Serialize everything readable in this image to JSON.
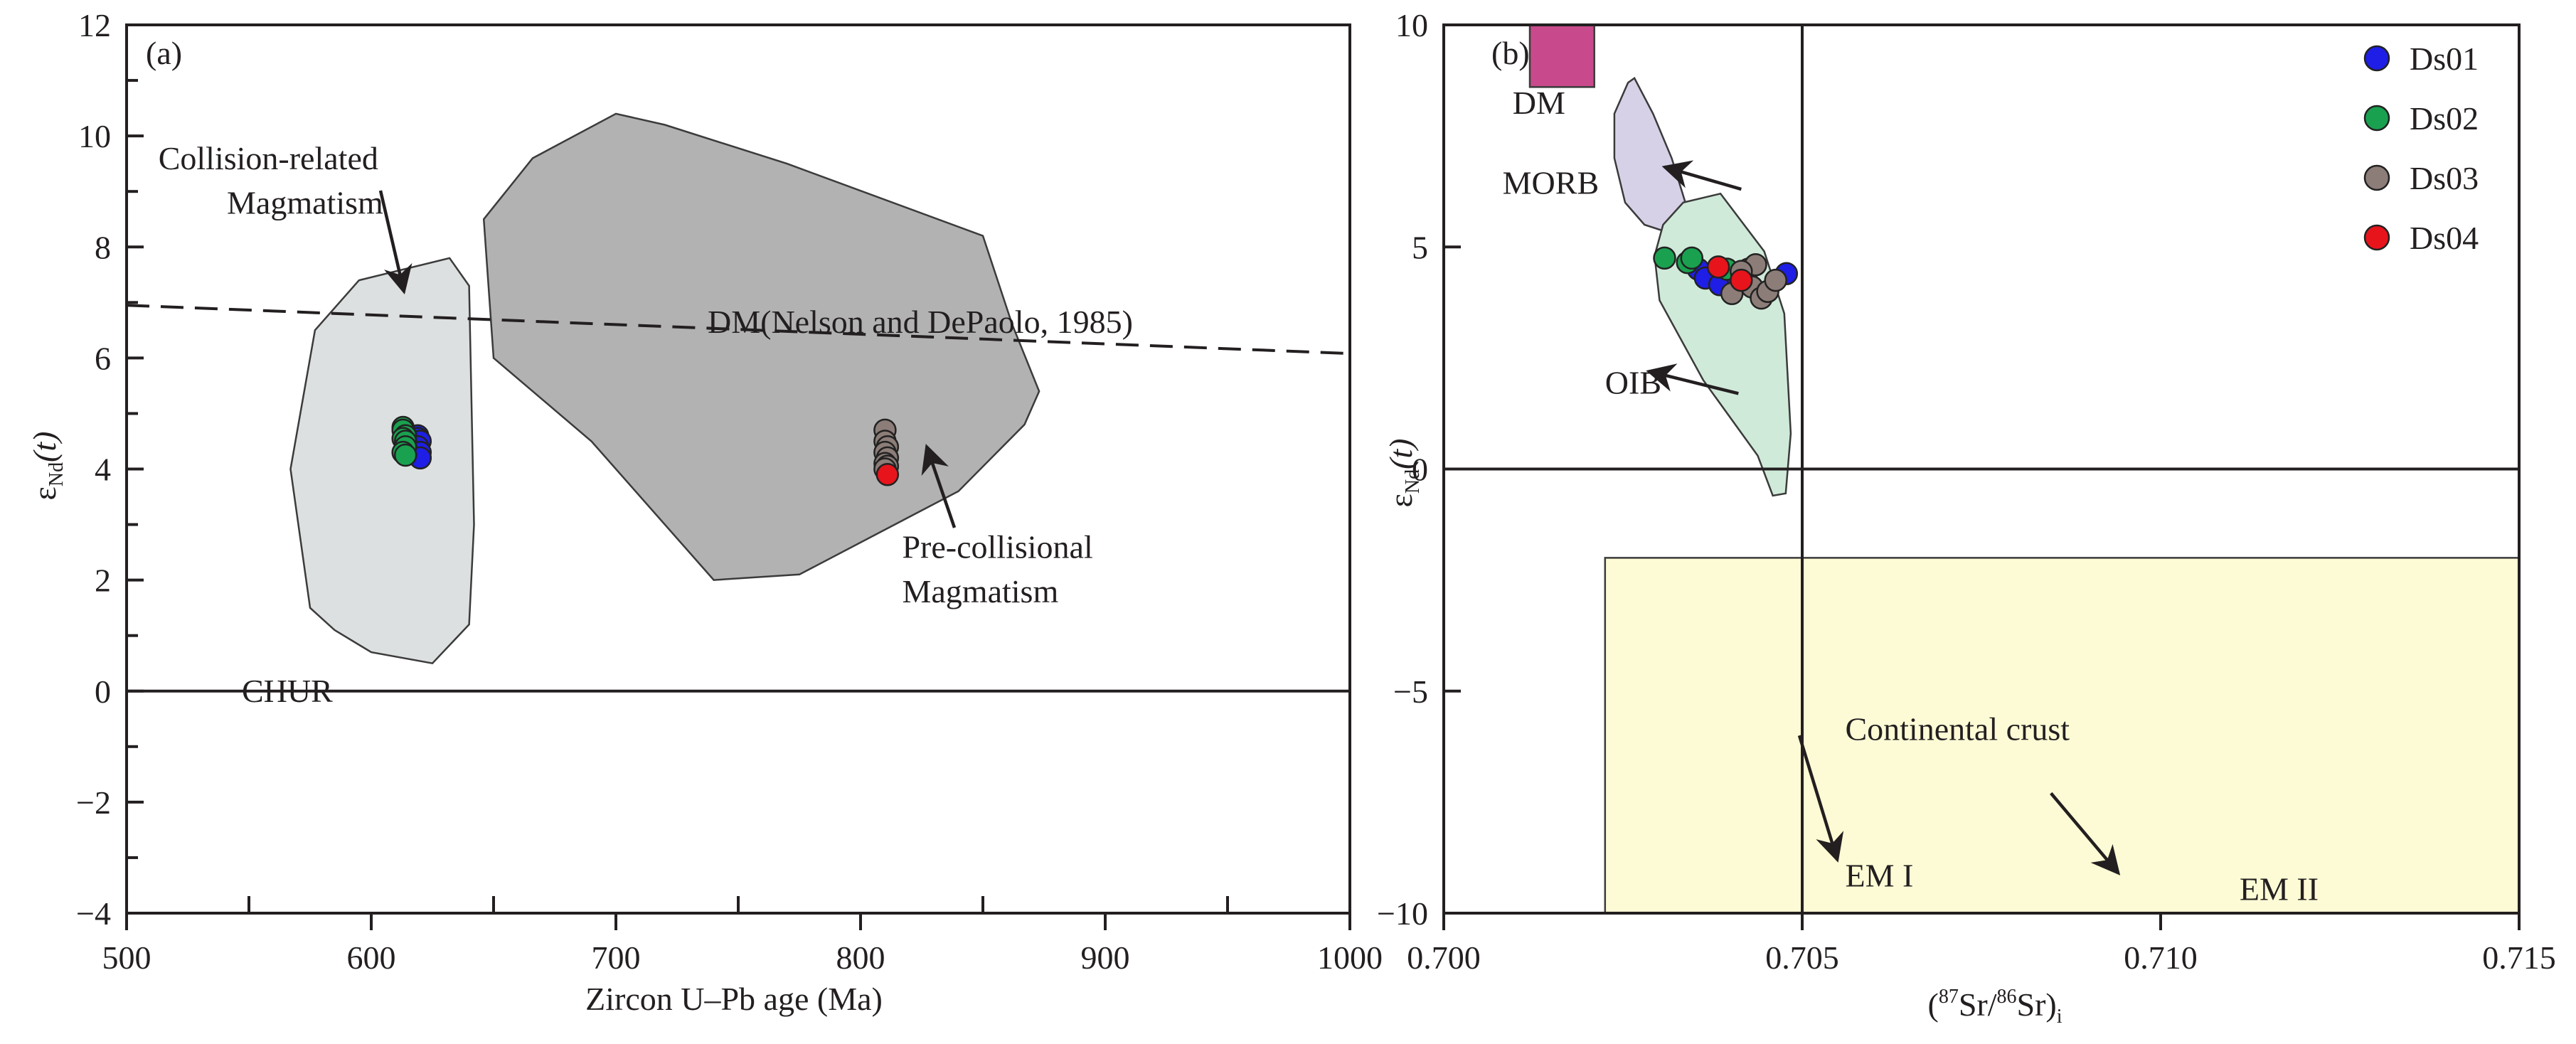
{
  "chart_data": [
    {
      "type": "scatter",
      "panel_label": "(a)",
      "xlabel": "Zircon U–Pb age (Ma)",
      "ylabel_main": "ε",
      "ylabel_sub": "Nd",
      "ylabel_tail": "(t)",
      "xlim": [
        500,
        1000
      ],
      "ylim": [
        -4,
        12
      ],
      "xticks": [
        "500",
        "600",
        "700",
        "800",
        "900",
        "1000"
      ],
      "yticks": [
        "−4",
        "−2",
        "0",
        "2",
        "4",
        "6",
        "8",
        "10",
        "12"
      ],
      "fields": [
        {
          "name": "collision-field",
          "color": "#dde0e0",
          "points": [
            [
              575,
              1.5
            ],
            [
              567,
              4
            ],
            [
              577,
              6.5
            ],
            [
              595,
              7.4
            ],
            [
              632,
              7.8
            ],
            [
              640,
              7.3
            ],
            [
              642,
              3
            ],
            [
              640,
              1.2
            ],
            [
              625,
              0.5
            ],
            [
              600,
              0.7
            ],
            [
              585,
              1.1
            ]
          ]
        },
        {
          "name": "pre-collision-field",
          "color": "#b2b2b2",
          "points": [
            [
              646,
              8.5
            ],
            [
              666,
              9.6
            ],
            [
              700,
              10.4
            ],
            [
              720,
              10.2
            ],
            [
              770,
              9.5
            ],
            [
              850,
              8.2
            ],
            [
              862,
              6.6
            ],
            [
              873,
              5.4
            ],
            [
              867,
              4.8
            ],
            [
              840,
              3.6
            ],
            [
              775,
              2.1
            ],
            [
              740,
              2.0
            ],
            [
              690,
              4.5
            ],
            [
              650,
              6.0
            ]
          ]
        }
      ],
      "reference_lines": [
        {
          "label": "DM(Nelson and DePaolo, 1985)",
          "style": "dashed",
          "points": [
            [
              500,
              6.95
            ],
            [
              1000,
              6.08
            ]
          ]
        },
        {
          "label": "CHUR",
          "style": "solid",
          "points": [
            [
              500,
              0
            ],
            [
              1000,
              0
            ]
          ]
        }
      ],
      "annotations": [
        {
          "text": "Collision-related",
          "x": 513,
          "y": 9.4
        },
        {
          "text": "Magmatism",
          "x": 541,
          "y": 8.6
        },
        {
          "text": "Pre-collisional",
          "x": 817,
          "y": 2.4
        },
        {
          "text": "Magmatism",
          "x": 817,
          "y": 1.6
        }
      ],
      "series": [
        {
          "name": "Ds01",
          "color": "#1e1ee6",
          "points": [
            [
              619,
              4.6
            ],
            [
              619,
              4.55
            ],
            [
              620,
              4.5
            ],
            [
              619,
              4.4
            ],
            [
              620,
              4.3
            ],
            [
              620,
              4.2
            ]
          ]
        },
        {
          "name": "Ds02",
          "color": "#1aa150",
          "points": [
            [
              613,
              4.75
            ],
            [
              613,
              4.7
            ],
            [
              614,
              4.6
            ],
            [
              613,
              4.55
            ],
            [
              614,
              4.5
            ],
            [
              614,
              4.4
            ],
            [
              613,
              4.3
            ],
            [
              614,
              4.25
            ]
          ]
        },
        {
          "name": "Ds03",
          "color": "#8c7d78",
          "points": [
            [
              810,
              4.7
            ],
            [
              810,
              4.5
            ],
            [
              811,
              4.4
            ],
            [
              810,
              4.3
            ],
            [
              811,
              4.2
            ],
            [
              810,
              4.1
            ],
            [
              811,
              4.05
            ],
            [
              810,
              4.0
            ]
          ]
        },
        {
          "name": "Ds04",
          "color": "#e8141c",
          "points": [
            [
              811,
              3.9
            ]
          ]
        }
      ]
    },
    {
      "type": "scatter",
      "panel_label": "(b)",
      "xlabel_pre": "(",
      "xlabel_sup1": "87",
      "xlabel_mid1": "Sr/",
      "xlabel_sup2": "86",
      "xlabel_mid2": "Sr)",
      "xlabel_sub": "i",
      "ylabel_main": "ε",
      "ylabel_sub": "Nd",
      "ylabel_tail": "(t)",
      "xlim": [
        0.7,
        0.715
      ],
      "ylim": [
        -10,
        10
      ],
      "xticks": [
        "0.700",
        "0.705",
        "0.710",
        "0.715"
      ],
      "yticks": [
        "−10",
        "−5",
        "0",
        "5",
        "10"
      ],
      "fields": [
        {
          "name": "DM",
          "color": "#c94a8c",
          "points": [
            [
              0.7012,
              10
            ],
            [
              0.7021,
              10
            ],
            [
              0.7021,
              8.6
            ],
            [
              0.7012,
              8.6
            ]
          ]
        },
        {
          "name": "MORB",
          "color": "#d7d1e8",
          "points": [
            [
              0.70257,
              8.7
            ],
            [
              0.70238,
              8.0
            ],
            [
              0.70238,
              7.0
            ],
            [
              0.70253,
              6.0
            ],
            [
              0.7028,
              5.5
            ],
            [
              0.70318,
              5.3
            ],
            [
              0.70338,
              5.4
            ],
            [
              0.70337,
              6.0
            ],
            [
              0.70318,
              7.0
            ],
            [
              0.70292,
              8.0
            ],
            [
              0.70266,
              8.8
            ]
          ]
        },
        {
          "name": "OIB",
          "color": "#d0ead9",
          "points": [
            [
              0.70306,
              5.5
            ],
            [
              0.70294,
              4.8
            ],
            [
              0.70301,
              3.8
            ],
            [
              0.70362,
              2.0
            ],
            [
              0.70438,
              0.3
            ],
            [
              0.70459,
              -0.6
            ],
            [
              0.70477,
              -0.55
            ],
            [
              0.70484,
              0.8
            ],
            [
              0.70475,
              3.5
            ],
            [
              0.70447,
              4.9
            ],
            [
              0.70386,
              6.2
            ],
            [
              0.70334,
              6.0
            ]
          ]
        },
        {
          "name": "Continental crust",
          "color": "#fdfbd5",
          "points": [
            [
              0.70225,
              -2
            ],
            [
              0.715,
              -2
            ],
            [
              0.715,
              -10
            ],
            [
              0.70225,
              -10
            ]
          ]
        }
      ],
      "reference_lines": [
        {
          "style": "solid",
          "points": [
            [
              0.705,
              10
            ],
            [
              0.705,
              -10
            ]
          ]
        },
        {
          "style": "solid",
          "points": [
            [
              0.7,
              0
            ],
            [
              0.715,
              0
            ]
          ]
        }
      ],
      "annotations": [
        {
          "text": "DM",
          "x": 0.70096,
          "y": 8.0,
          "anchor": "start"
        },
        {
          "text": "MORB",
          "x": 0.70082,
          "y": 6.2,
          "anchor": "start"
        },
        {
          "text": "OIB",
          "x": 0.70225,
          "y": 1.7,
          "anchor": "start"
        },
        {
          "text": "Continental crust",
          "x": 0.7056,
          "y": -6.1,
          "anchor": "start"
        },
        {
          "text": "EM I",
          "x": 0.7056,
          "y": -9.4,
          "anchor": "start"
        },
        {
          "text": "EM II",
          "x": 0.7111,
          "y": -9.7,
          "anchor": "start"
        }
      ],
      "arrows": [
        {
          "from": [
            0.70411,
            1.7
          ],
          "to": [
            0.70286,
            2.2
          ]
        },
        {
          "from": [
            0.70415,
            6.3
          ],
          "to": [
            0.70308,
            6.8
          ]
        },
        {
          "from": [
            0.70496,
            -6.0
          ],
          "to": [
            0.70549,
            -8.8
          ]
        },
        {
          "from": [
            0.70847,
            -7.3
          ],
          "to": [
            0.70941,
            -9.1
          ]
        }
      ],
      "series": [
        {
          "name": "Ds01",
          "color": "#1e1ee6",
          "points": [
            [
              0.70355,
              4.5
            ],
            [
              0.70365,
              4.3
            ],
            [
              0.70385,
              4.15
            ],
            [
              0.7041,
              4.3
            ],
            [
              0.70478,
              4.4
            ]
          ]
        },
        {
          "name": "Ds02",
          "color": "#1aa150",
          "points": [
            [
              0.70308,
              4.75
            ],
            [
              0.7034,
              4.65
            ],
            [
              0.70346,
              4.75
            ],
            [
              0.70395,
              4.5
            ]
          ]
        },
        {
          "name": "Ds03",
          "color": "#8c7d78",
          "points": [
            [
              0.70402,
              3.95
            ],
            [
              0.70425,
              4.5
            ],
            [
              0.70435,
              4.6
            ],
            [
              0.7043,
              4.1
            ],
            [
              0.70443,
              3.85
            ],
            [
              0.70452,
              4.0
            ],
            [
              0.70463,
              4.25
            ],
            [
              0.70415,
              4.45
            ]
          ]
        },
        {
          "name": "Ds04",
          "color": "#e8141c",
          "points": [
            [
              0.70383,
              4.55
            ],
            [
              0.70415,
              4.25
            ]
          ]
        }
      ],
      "legend": {
        "position": "top-right",
        "entries": [
          "Ds01",
          "Ds02",
          "Ds03",
          "Ds04"
        ]
      }
    }
  ]
}
